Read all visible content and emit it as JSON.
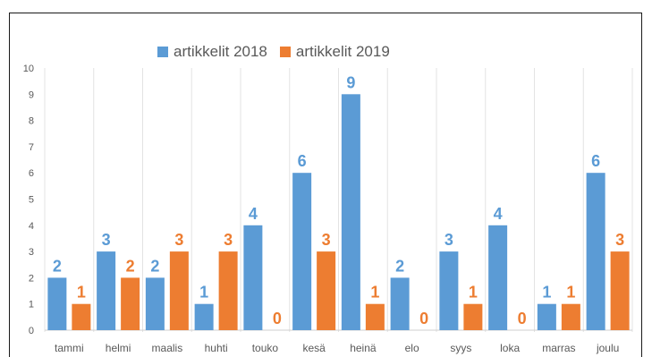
{
  "chart_data": {
    "type": "bar",
    "categories": [
      "tammi",
      "helmi",
      "maalis",
      "huhti",
      "touko",
      "kesä",
      "heinä",
      "elo",
      "syys",
      "loka",
      "marras",
      "joulu"
    ],
    "series": [
      {
        "name": "artikkelit 2018",
        "color": "#5B9BD5",
        "values": [
          2,
          3,
          2,
          1,
          4,
          6,
          9,
          2,
          3,
          4,
          1,
          6
        ]
      },
      {
        "name": "artikkelit 2019",
        "color": "#ED7D31",
        "values": [
          1,
          2,
          3,
          3,
          0,
          3,
          1,
          0,
          1,
          0,
          1,
          3
        ]
      }
    ],
    "ylim": [
      0,
      10
    ],
    "yticks": [
      "0",
      "1",
      "2",
      "3",
      "4",
      "5",
      "6",
      "7",
      "8",
      "9",
      "10"
    ],
    "grid": "vertical category separators",
    "legend_position": "top"
  }
}
